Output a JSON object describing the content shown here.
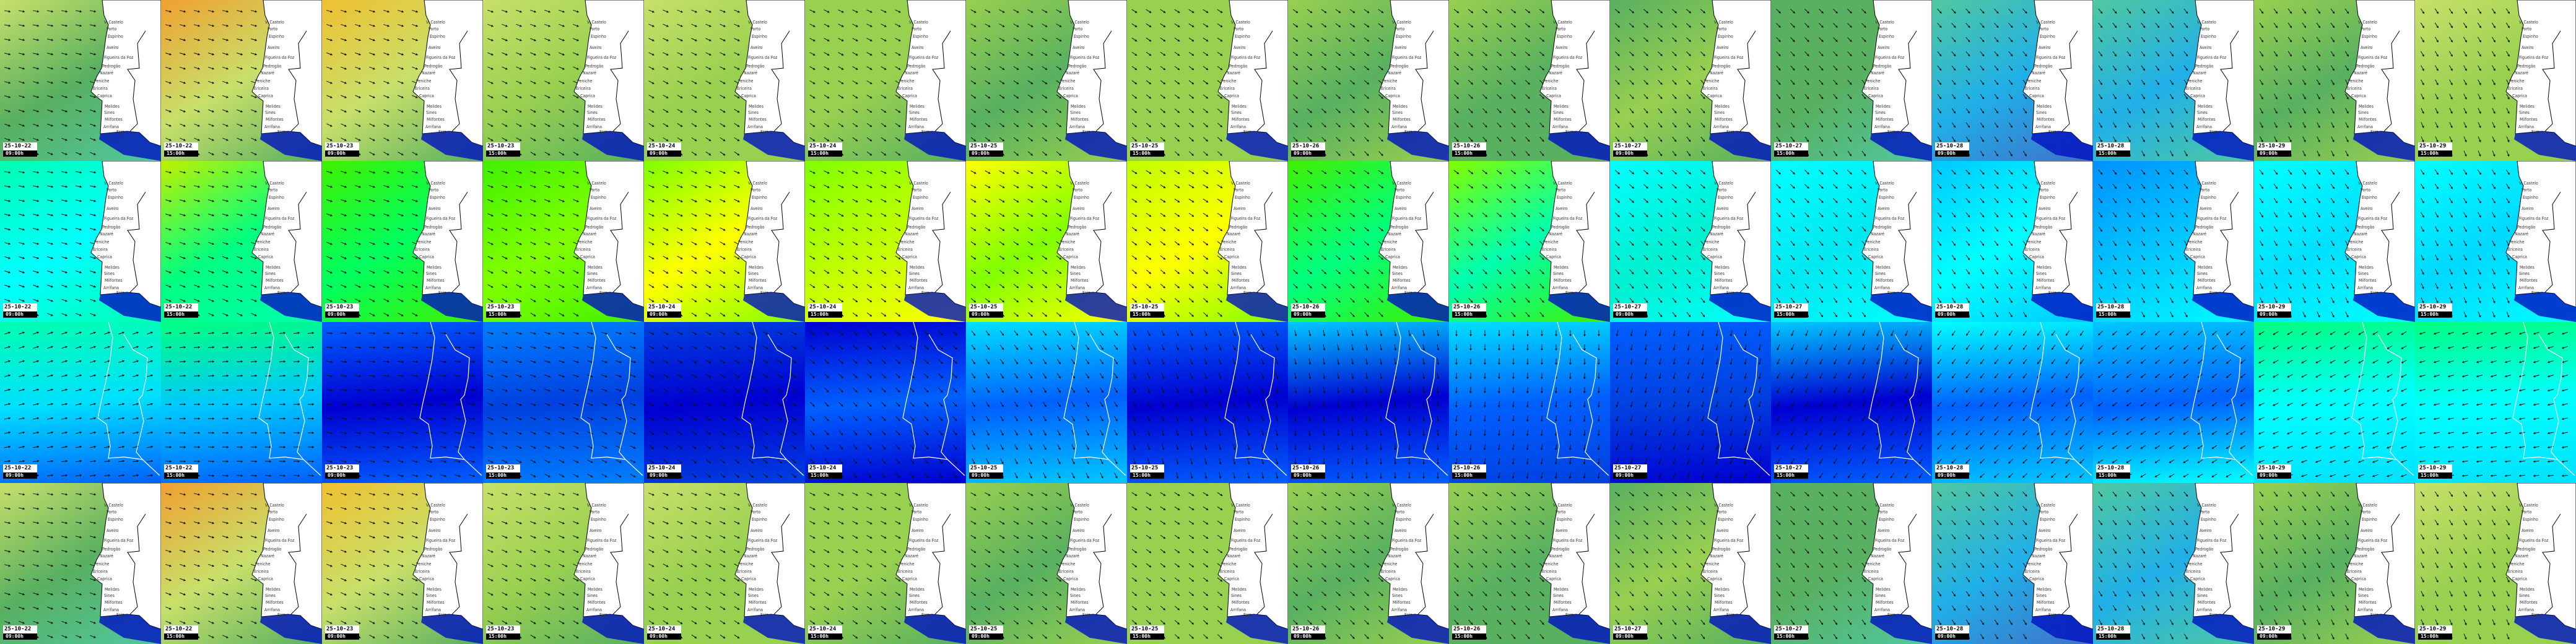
{
  "map": {
    "places": [
      "V. Castelo",
      "Porto",
      "Espinho",
      "Aveiro",
      "Figueira da Foz",
      "Pedrogão",
      "Nazaré",
      "Peniche",
      "Ericeira",
      "Caprica",
      "Melides",
      "Sines",
      "Milfontes",
      "Arrifana",
      "Faro"
    ],
    "land_color": "#ffffff",
    "coast_color_rows_1_2_4": "#000000",
    "coast_color_row_3": "#ffffff"
  },
  "timestamps": [
    {
      "date": "25-10-22",
      "time": "09:00h"
    },
    {
      "date": "25-10-22",
      "time": "15:00h"
    },
    {
      "date": "25-10-23",
      "time": "09:00h"
    },
    {
      "date": "25-10-23",
      "time": "15:00h"
    },
    {
      "date": "25-10-24",
      "time": "09:00h"
    },
    {
      "date": "25-10-24",
      "time": "15:00h"
    },
    {
      "date": "25-10-25",
      "time": "09:00h"
    },
    {
      "date": "25-10-25",
      "time": "15:00h"
    },
    {
      "date": "25-10-26",
      "time": "09:00h"
    },
    {
      "date": "25-10-26",
      "time": "15:00h"
    },
    {
      "date": "25-10-27",
      "time": "09:00h"
    },
    {
      "date": "25-10-27",
      "time": "15:00h"
    },
    {
      "date": "25-10-28",
      "time": "09:00h"
    },
    {
      "date": "25-10-28",
      "time": "15:00h"
    },
    {
      "date": "25-10-29",
      "time": "09:00h"
    },
    {
      "date": "25-10-29",
      "time": "15:00h"
    }
  ],
  "rows": [
    {
      "type": "coastal",
      "palettes": [
        [
          "#c8e06a",
          "#58b060",
          "#50c8a0"
        ],
        [
          "#f0a030",
          "#c8e06a",
          "#58b060"
        ],
        [
          "#f0c030",
          "#c8e06a",
          "#58b060"
        ],
        [
          "#c8e06a",
          "#98d050",
          "#58b060"
        ],
        [
          "#c8e06a",
          "#98d050",
          "#98d050"
        ],
        [
          "#98d050",
          "#98d050",
          "#58b060"
        ],
        [
          "#98d050",
          "#58b060",
          "#98d050"
        ],
        [
          "#98d050",
          "#98d050",
          "#98d050"
        ],
        [
          "#98d050",
          "#58b060",
          "#98d050"
        ],
        [
          "#98d050",
          "#58b060",
          "#58b060"
        ],
        [
          "#58b060",
          "#98d050",
          "#58b060"
        ],
        [
          "#58b060",
          "#58b060",
          "#50c8a0"
        ],
        [
          "#50c8a0",
          "#20b0e8",
          "#4070c8"
        ],
        [
          "#50c8a0",
          "#20b0e8",
          "#50c8a0"
        ],
        [
          "#98d050",
          "#58b060",
          "#98d050"
        ],
        [
          "#c8e06a",
          "#98d050",
          "#98d050"
        ]
      ]
    },
    {
      "type": "coastal",
      "palettes": [
        [
          "#00ffb0",
          "#00ffff",
          "#00ffb0"
        ],
        [
          "#c0f000",
          "#00ff80",
          "#00ffb0"
        ],
        [
          "#40f000",
          "#00ff60",
          "#40f000"
        ],
        [
          "#40f000",
          "#80ff00",
          "#40f000"
        ],
        [
          "#80ff00",
          "#ffff00",
          "#80ff00"
        ],
        [
          "#80ff00",
          "#c0ff00",
          "#ffff00"
        ],
        [
          "#ffff00",
          "#80ff00",
          "#ffff00"
        ],
        [
          "#c0ff00",
          "#ffff00",
          "#80ff00"
        ],
        [
          "#40f000",
          "#00ff80",
          "#40f000"
        ],
        [
          "#80ff00",
          "#00ffb0",
          "#40f000"
        ],
        [
          "#00ffff",
          "#00f0d0",
          "#00ffff"
        ],
        [
          "#00ffff",
          "#00e8f0",
          "#00ffff"
        ],
        [
          "#00c8ff",
          "#00ffff",
          "#00c8ff"
        ],
        [
          "#0090ff",
          "#00c8ff",
          "#00ffff"
        ],
        [
          "#00ffff",
          "#00e0ff",
          "#00ffff"
        ],
        [
          "#00ffff",
          "#00d8ff",
          "#00ffff"
        ]
      ]
    },
    {
      "type": "regional",
      "palettes": [
        [
          "#00ffb0",
          "#00e0ff",
          "#0060ff"
        ],
        [
          "#00ff80",
          "#00c8ff",
          "#0060ff"
        ],
        [
          "#0060ff",
          "#0000d0",
          "#0060ff"
        ],
        [
          "#0080ff",
          "#0040e0",
          "#0080ff"
        ],
        [
          "#0040e0",
          "#0000d0",
          "#0040e0"
        ],
        [
          "#0000d0",
          "#0060ff",
          "#0000d0"
        ],
        [
          "#00e0ff",
          "#0060ff",
          "#00c8ff"
        ],
        [
          "#0060ff",
          "#0000d0",
          "#0060ff"
        ],
        [
          "#00c8ff",
          "#0000d0",
          "#0060ff"
        ],
        [
          "#00e0ff",
          "#0060ff",
          "#0040e0"
        ],
        [
          "#0060ff",
          "#0040e0",
          "#0000d0"
        ],
        [
          "#00c8ff",
          "#0000d0",
          "#0060ff"
        ],
        [
          "#00ffff",
          "#0060ff",
          "#00c8ff"
        ],
        [
          "#00c8ff",
          "#0060ff",
          "#00ffff"
        ],
        [
          "#00ff80",
          "#00ffff",
          "#00e0ff"
        ],
        [
          "#00ff80",
          "#00ffff",
          "#00e0ff"
        ]
      ]
    },
    {
      "type": "coastal",
      "palettes": [
        [
          "#c8e06a",
          "#58b060",
          "#50c8a0"
        ],
        [
          "#f0a030",
          "#c8e06a",
          "#58b060"
        ],
        [
          "#f0c030",
          "#c8e06a",
          "#58b060"
        ],
        [
          "#c8e06a",
          "#98d050",
          "#58b060"
        ],
        [
          "#c8e06a",
          "#98d050",
          "#98d050"
        ],
        [
          "#98d050",
          "#98d050",
          "#58b060"
        ],
        [
          "#98d050",
          "#58b060",
          "#98d050"
        ],
        [
          "#98d050",
          "#98d050",
          "#98d050"
        ],
        [
          "#98d050",
          "#58b060",
          "#98d050"
        ],
        [
          "#98d050",
          "#58b060",
          "#58b060"
        ],
        [
          "#58b060",
          "#98d050",
          "#58b060"
        ],
        [
          "#58b060",
          "#58b060",
          "#50c8a0"
        ],
        [
          "#50c8a0",
          "#20b0e8",
          "#4070c8"
        ],
        [
          "#50c8a0",
          "#20b0e8",
          "#50c8a0"
        ],
        [
          "#98d050",
          "#58b060",
          "#98d050"
        ],
        [
          "#c8e06a",
          "#98d050",
          "#98d050"
        ]
      ]
    }
  ]
}
